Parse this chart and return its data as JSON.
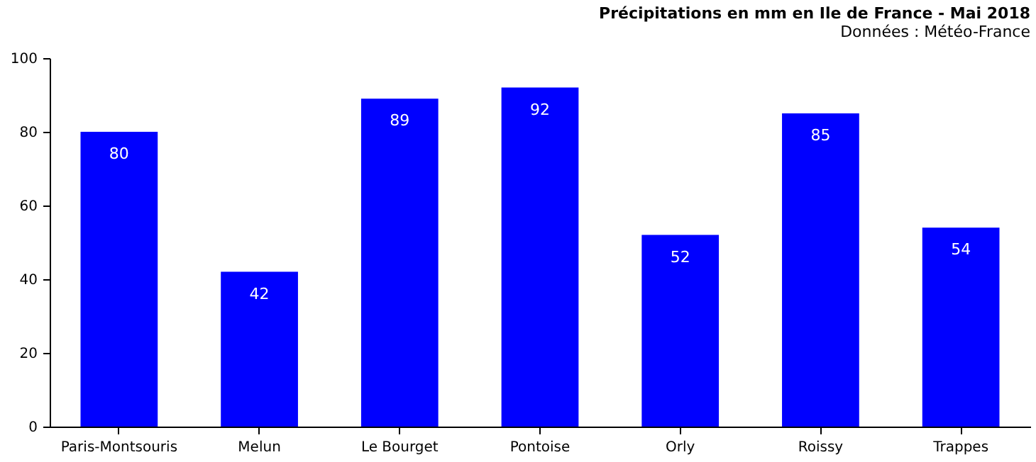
{
  "chart_data": {
    "type": "bar",
    "title": "Précipitations en mm en Ile de France - Mai 2018",
    "subtitle": "Données : Météo-France",
    "categories": [
      "Paris-Montsouris",
      "Melun",
      "Le Bourget",
      "Pontoise",
      "Orly",
      "Roissy",
      "Trappes"
    ],
    "values": [
      80,
      42,
      89,
      92,
      52,
      85,
      54
    ],
    "color": "#0000ff",
    "ylim": [
      0,
      100
    ],
    "yticks": [
      0,
      20,
      40,
      60,
      80,
      100
    ],
    "grid": false,
    "data_labels": true
  }
}
